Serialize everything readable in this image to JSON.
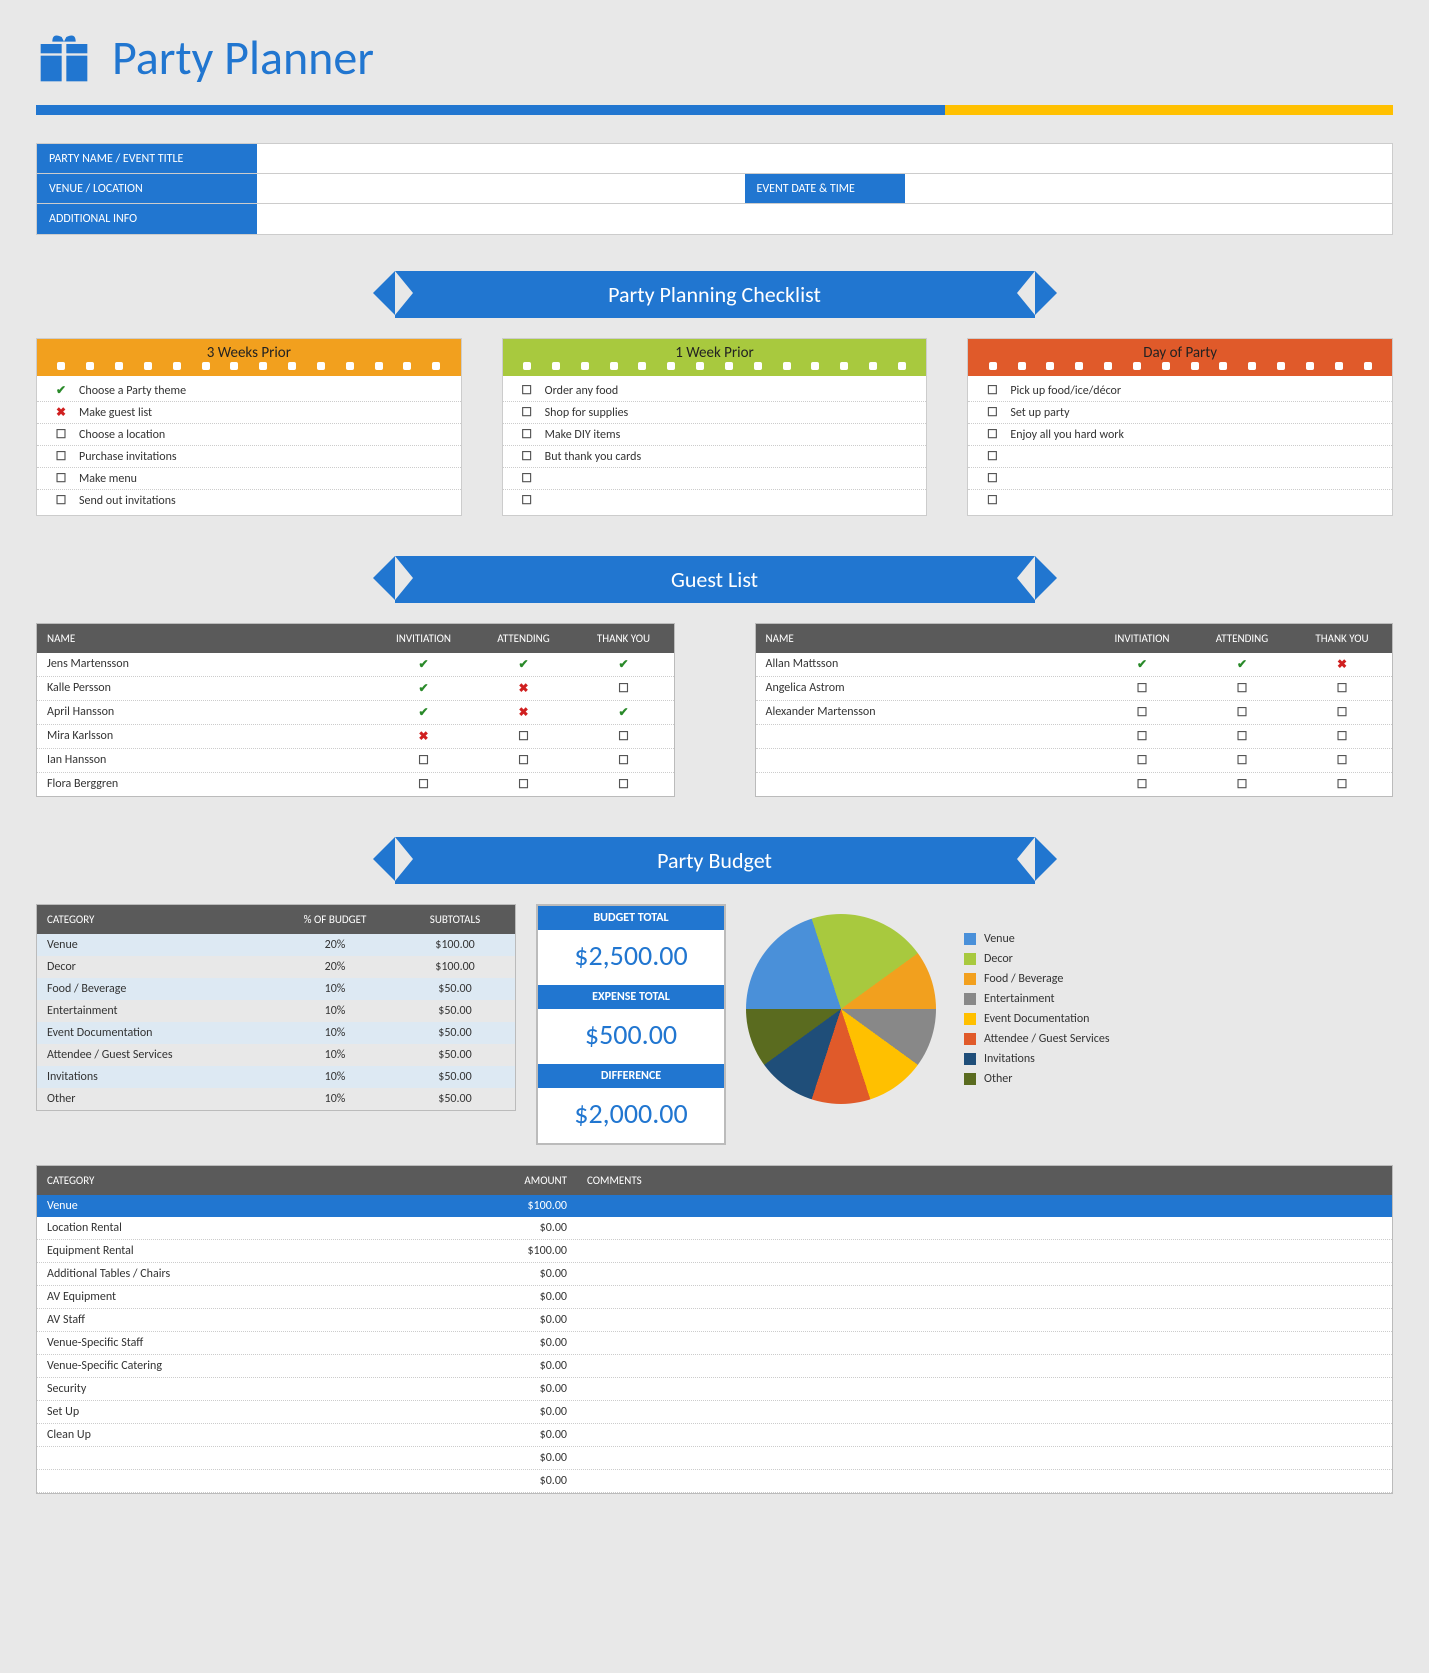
{
  "title": "Party Planner",
  "colors": {
    "primary_blue": "#2176d0",
    "gold": "#ffc000",
    "header_gray": "#5a5a5a",
    "check_green": "#2a8a2a",
    "x_red": "#d02020",
    "alt_row": "#dde9f3",
    "page_bg": "#e8e8e8"
  },
  "info": {
    "party_name_label": "PARTY NAME / EVENT TITLE",
    "venue_label": "VENUE / LOCATION",
    "datetime_label": "EVENT DATE & TIME",
    "additional_label": "ADDITIONAL INFO",
    "party_name": "",
    "venue": "",
    "datetime": "",
    "additional": ""
  },
  "checklist_banner": "Party Planning Checklist",
  "checklists": [
    {
      "title": "3 Weeks Prior",
      "color": "orange",
      "items": [
        {
          "mark": "check",
          "text": "Choose a Party theme"
        },
        {
          "mark": "x",
          "text": "Make guest list"
        },
        {
          "mark": "box",
          "text": "Choose a location"
        },
        {
          "mark": "box",
          "text": "Purchase invitations"
        },
        {
          "mark": "box",
          "text": "Make menu"
        },
        {
          "mark": "box",
          "text": "Send out invitations"
        }
      ]
    },
    {
      "title": "1 Week Prior",
      "color": "green",
      "items": [
        {
          "mark": "box",
          "text": "Order any food"
        },
        {
          "mark": "box",
          "text": "Shop for supplies"
        },
        {
          "mark": "box",
          "text": "Make DIY items"
        },
        {
          "mark": "box",
          "text": "But thank you cards"
        },
        {
          "mark": "box",
          "text": ""
        },
        {
          "mark": "box",
          "text": ""
        }
      ]
    },
    {
      "title": "Day of Party",
      "color": "red",
      "items": [
        {
          "mark": "box",
          "text": "Pick up food/ice/décor"
        },
        {
          "mark": "box",
          "text": "Set up party"
        },
        {
          "mark": "box",
          "text": "Enjoy all you hard work"
        },
        {
          "mark": "box",
          "text": ""
        },
        {
          "mark": "box",
          "text": ""
        },
        {
          "mark": "box",
          "text": ""
        }
      ]
    }
  ],
  "guest_banner": "Guest List",
  "guest_headers": {
    "name": "NAME",
    "inv": "INVITIATION",
    "att": "ATTENDING",
    "ty": "THANK YOU"
  },
  "guests_left": [
    {
      "name": "Jens Martensson",
      "inv": "check",
      "att": "check",
      "ty": "check"
    },
    {
      "name": "Kalle Persson",
      "inv": "check",
      "att": "x",
      "ty": "box"
    },
    {
      "name": "April Hansson",
      "inv": "check",
      "att": "x",
      "ty": "check"
    },
    {
      "name": "Mira Karlsson",
      "inv": "x",
      "att": "box",
      "ty": "box"
    },
    {
      "name": "Ian Hansson",
      "inv": "box",
      "att": "box",
      "ty": "box"
    },
    {
      "name": "Flora Berggren",
      "inv": "box",
      "att": "box",
      "ty": "box"
    }
  ],
  "guests_right": [
    {
      "name": "Allan Mattsson",
      "inv": "check",
      "att": "check",
      "ty": "x"
    },
    {
      "name": "Angelica Astrom",
      "inv": "box",
      "att": "box",
      "ty": "box"
    },
    {
      "name": "Alexander Martensson",
      "inv": "box",
      "att": "box",
      "ty": "box"
    },
    {
      "name": "",
      "inv": "box",
      "att": "box",
      "ty": "box"
    },
    {
      "name": "",
      "inv": "box",
      "att": "box",
      "ty": "box"
    },
    {
      "name": "",
      "inv": "box",
      "att": "box",
      "ty": "box"
    }
  ],
  "budget_banner": "Party Budget",
  "budget_headers": {
    "cat": "CATEGORY",
    "pct": "% OF BUDGET",
    "sub": "SUBTOTALS"
  },
  "budget_cats": [
    {
      "cat": "Venue",
      "pct": "20%",
      "sub": "$100.00",
      "color": "#4a90d9"
    },
    {
      "cat": "Decor",
      "pct": "20%",
      "sub": "$100.00",
      "color": "#a8c93e"
    },
    {
      "cat": "Food / Beverage",
      "pct": "10%",
      "sub": "$50.00",
      "color": "#f2a01e"
    },
    {
      "cat": "Entertainment",
      "pct": "10%",
      "sub": "$50.00",
      "color": "#888888"
    },
    {
      "cat": "Event Documentation",
      "pct": "10%",
      "sub": "$50.00",
      "color": "#ffc000"
    },
    {
      "cat": "Attendee / Guest Services",
      "pct": "10%",
      "sub": "$50.00",
      "color": "#e05a2a"
    },
    {
      "cat": "Invitations",
      "pct": "10%",
      "sub": "$50.00",
      "color": "#1f4e79"
    },
    {
      "cat": "Other",
      "pct": "10%",
      "sub": "$50.00",
      "color": "#5a6b1f"
    }
  ],
  "pie": {
    "slices": [
      {
        "label": "Venue",
        "value": 20,
        "color": "#4a90d9"
      },
      {
        "label": "Decor",
        "value": 20,
        "color": "#a8c93e"
      },
      {
        "label": "Food / Beverage",
        "value": 10,
        "color": "#f2a01e"
      },
      {
        "label": "Entertainment",
        "value": 10,
        "color": "#888888"
      },
      {
        "label": "Event Documentation",
        "value": 10,
        "color": "#ffc000"
      },
      {
        "label": "Attendee / Guest Services",
        "value": 10,
        "color": "#e05a2a"
      },
      {
        "label": "Invitations",
        "value": 10,
        "color": "#1f4e79"
      },
      {
        "label": "Other",
        "value": 10,
        "color": "#5a6b1f"
      }
    ]
  },
  "totals": {
    "budget_label": "BUDGET TOTAL",
    "budget_value": "$2,500.00",
    "expense_label": "EXPENSE TOTAL",
    "expense_value": "$500.00",
    "diff_label": "DIFFERENCE",
    "diff_value": "$2,000.00"
  },
  "exp_headers": {
    "cat": "CATEGORY",
    "amt": "AMOUNT",
    "com": "COMMENTS"
  },
  "exp_section": {
    "cat": "Venue",
    "amt": "$100.00"
  },
  "exp_rows": [
    {
      "cat": "Location Rental",
      "amt": "$0.00"
    },
    {
      "cat": "Equipment Rental",
      "amt": "$100.00"
    },
    {
      "cat": "Additional Tables / Chairs",
      "amt": "$0.00"
    },
    {
      "cat": "AV Equipment",
      "amt": "$0.00"
    },
    {
      "cat": "AV Staff",
      "amt": "$0.00"
    },
    {
      "cat": "Venue-Specific Staff",
      "amt": "$0.00"
    },
    {
      "cat": "Venue-Specific Catering",
      "amt": "$0.00"
    },
    {
      "cat": "Security",
      "amt": "$0.00"
    },
    {
      "cat": "Set Up",
      "amt": "$0.00"
    },
    {
      "cat": "Clean Up",
      "amt": "$0.00"
    },
    {
      "cat": "",
      "amt": "$0.00"
    },
    {
      "cat": "",
      "amt": "$0.00"
    }
  ]
}
